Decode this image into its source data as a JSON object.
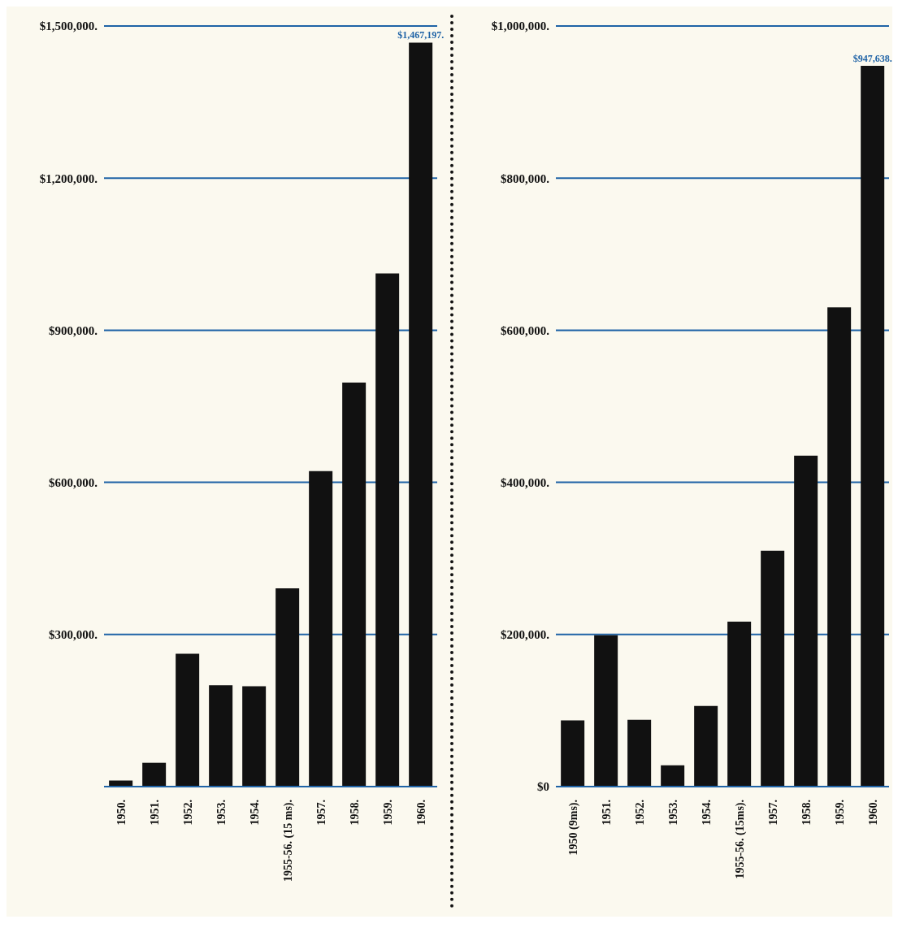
{
  "chart_data": [
    {
      "type": "bar",
      "categories": [
        "1950.",
        "1951.",
        "1952.",
        "1953.",
        "1954.",
        "1955-56. (15 ms).",
        "1957.",
        "1958.",
        "1959.",
        "1960."
      ],
      "values": [
        12000,
        47000,
        262000,
        200000,
        198000,
        391000,
        622000,
        797000,
        1012000,
        1467197
      ],
      "color": "#111111",
      "value_labels": [
        null,
        null,
        null,
        null,
        null,
        null,
        null,
        null,
        null,
        "$1,467,197."
      ],
      "ylim": [
        0,
        1500000
      ],
      "yticks": [
        {
          "value": 0,
          "label": null
        },
        {
          "value": 300000,
          "label": "$300,000."
        },
        {
          "value": 600000,
          "label": "$600,000."
        },
        {
          "value": 900000,
          "label": "$900,000."
        },
        {
          "value": 1200000,
          "label": "$1,200,000."
        },
        {
          "value": 1500000,
          "label": "$1,500,000."
        }
      ],
      "grid": "y"
    },
    {
      "type": "bar",
      "categories": [
        "1950 (9ms).",
        "1951.",
        "1952.",
        "1953.",
        "1954.",
        "1955-56. (15ms).",
        "1957.",
        "1958.",
        "1959.",
        "1960."
      ],
      "values": [
        87000,
        199000,
        88000,
        28000,
        106000,
        217000,
        310000,
        435000,
        630000,
        947638
      ],
      "color": "#111111",
      "value_labels": [
        null,
        null,
        null,
        null,
        null,
        null,
        null,
        null,
        null,
        "$947,638."
      ],
      "ylim": [
        0,
        1000000
      ],
      "yticks": [
        {
          "value": 0,
          "label": "$0"
        },
        {
          "value": 200000,
          "label": "$200,000."
        },
        {
          "value": 400000,
          "label": "$400,000."
        },
        {
          "value": 600000,
          "label": "$600,000."
        },
        {
          "value": 800000,
          "label": "$800,000."
        },
        {
          "value": 1000000,
          "label": "$1,000,000."
        }
      ],
      "grid": "y"
    }
  ]
}
